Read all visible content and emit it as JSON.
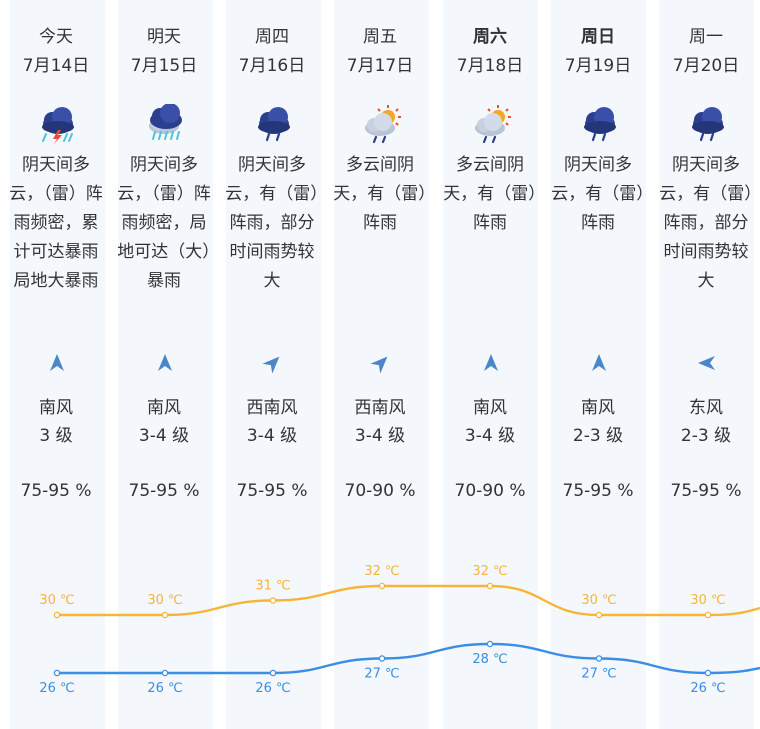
{
  "days": [
    {
      "name": "今天",
      "date": "7月14日",
      "bold": false,
      "icon": "thunderstorm-icon",
      "desc": "阴天间多云，（雷）阵雨频密，累计可达暴雨局地大暴雨",
      "wind_icon": "wind-arrow-icon",
      "wind_dir": "南风",
      "wind_level": "3 级",
      "humidity": "75-95 %",
      "high": "30 ℃",
      "low": "26 ℃"
    },
    {
      "name": "明天",
      "date": "7月15日",
      "bold": false,
      "icon": "heavy-rain-icon",
      "desc": "阴天间多云，（雷）阵雨频密，局地可达（大）暴雨",
      "wind_icon": "wind-arrow-icon",
      "wind_dir": "南风",
      "wind_level": "3-4 级",
      "humidity": "75-95 %",
      "high": "30 ℃",
      "low": "26 ℃"
    },
    {
      "name": "周四",
      "date": "7月16日",
      "bold": false,
      "icon": "rain-icon",
      "desc": "阴天间多云，有（雷）阵雨，部分时间雨势较大",
      "wind_icon": "wind-arrow-icon",
      "wind_dir": "西南风",
      "wind_level": "3-4 级",
      "humidity": "75-95 %",
      "high": "31 ℃",
      "low": "26 ℃"
    },
    {
      "name": "周五",
      "date": "7月17日",
      "bold": false,
      "icon": "sun-cloud-rain-icon",
      "desc": "多云间阴天，有（雷）阵雨",
      "wind_icon": "wind-arrow-icon",
      "wind_dir": "西南风",
      "wind_level": "3-4 级",
      "humidity": "70-90 %",
      "high": "32 ℃",
      "low": "27 ℃"
    },
    {
      "name": "周六",
      "date": "7月18日",
      "bold": true,
      "icon": "sun-cloud-rain-icon",
      "desc": "多云间阴天，有（雷）阵雨",
      "wind_icon": "wind-arrow-icon",
      "wind_dir": "南风",
      "wind_level": "3-4 级",
      "humidity": "70-90 %",
      "high": "32 ℃",
      "low": "28 ℃"
    },
    {
      "name": "周日",
      "date": "7月19日",
      "bold": true,
      "icon": "rain-icon",
      "desc": "阴天间多云，有（雷）阵雨",
      "wind_icon": "wind-arrow-icon",
      "wind_dir": "南风",
      "wind_level": "2-3 级",
      "humidity": "75-95 %",
      "high": "30 ℃",
      "low": "27 ℃"
    },
    {
      "name": "周一",
      "date": "7月20日",
      "bold": false,
      "icon": "rain-icon",
      "desc": "阴天间多云，有（雷）阵雨，部分时间雨势较大",
      "wind_icon": "wind-arrow-icon",
      "wind_dir": "东风",
      "wind_level": "2-3 级",
      "humidity": "75-95 %",
      "high": "30 ℃",
      "low": "26 ℃"
    }
  ],
  "colors": {
    "high": "#f7b538",
    "low": "#3a8ee6",
    "strip": "#f4f7fc",
    "text": "#333333",
    "icon_cloud": "#2b3f8f",
    "wind_arrow": "#4a86c8"
  },
  "chart_data": {
    "type": "line",
    "categories": [
      "7月14日",
      "7月15日",
      "7月16日",
      "7月17日",
      "7月18日",
      "7月19日",
      "7月20日"
    ],
    "series": [
      {
        "values": [
          30,
          30,
          31,
          32,
          32,
          30,
          30
        ]
      },
      {
        "values": [
          26,
          26,
          26,
          27,
          28,
          27,
          26
        ]
      }
    ],
    "unit": "℃"
  }
}
